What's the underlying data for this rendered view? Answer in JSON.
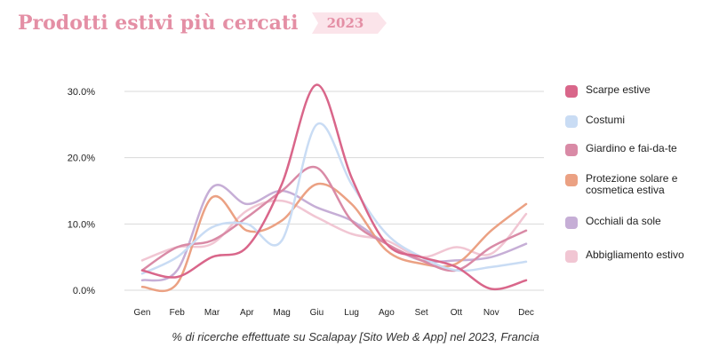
{
  "header": {
    "title": "Prodotti estivi più cercati",
    "year": "2023"
  },
  "caption": "% di ricerche effettuate su Scalapay [Sito Web & App] nel 2023, Francia",
  "colors": {
    "title": "#e48fa5",
    "badge_bg": "#fbe4ea",
    "grid": "#d9d9d9"
  },
  "chart_data": {
    "type": "line",
    "categories": [
      "Gen",
      "Feb",
      "Mar",
      "Apr",
      "Mag",
      "Giu",
      "Lug",
      "Ago",
      "Set",
      "Ott",
      "Nov",
      "Dec"
    ],
    "y_ticks": [
      "0.0%",
      "10.0%",
      "20.0%",
      "30.0%"
    ],
    "ylim": [
      0,
      30
    ],
    "grid": true,
    "legend_position": "right",
    "series": [
      {
        "name": "Scarpe estive",
        "color": "#d9668a",
        "values": [
          3.0,
          2.0,
          5.0,
          6.5,
          16.0,
          31.0,
          17.0,
          7.0,
          5.0,
          3.5,
          0.2,
          1.5
        ]
      },
      {
        "name": "Costumi",
        "color": "#c9dcf4",
        "values": [
          2.5,
          5.0,
          9.5,
          10.0,
          7.5,
          25.0,
          16.0,
          8.5,
          5.0,
          3.0,
          3.5,
          4.3
        ]
      },
      {
        "name": "Giardino e fai-da-te",
        "color": "#d98aa6",
        "values": [
          3.0,
          6.5,
          7.5,
          11.0,
          15.0,
          18.5,
          10.5,
          7.0,
          4.5,
          3.0,
          6.5,
          9.0
        ]
      },
      {
        "name": "Protezione solare e cosmetica estiva",
        "color": "#eba183",
        "values": [
          0.5,
          1.0,
          14.0,
          9.0,
          10.5,
          16.0,
          13.0,
          6.0,
          4.0,
          4.0,
          9.0,
          13.0
        ]
      },
      {
        "name": "Occhiali da sole",
        "color": "#c6aed6",
        "values": [
          1.5,
          3.0,
          15.5,
          13.0,
          15.0,
          12.5,
          10.5,
          7.0,
          4.5,
          4.5,
          5.0,
          7.0
        ]
      },
      {
        "name": "Abbigliamento estivo",
        "color": "#f1c6d3",
        "values": [
          4.5,
          6.5,
          7.0,
          12.0,
          13.5,
          11.0,
          8.5,
          7.5,
          5.0,
          6.5,
          5.5,
          11.5
        ]
      }
    ]
  }
}
